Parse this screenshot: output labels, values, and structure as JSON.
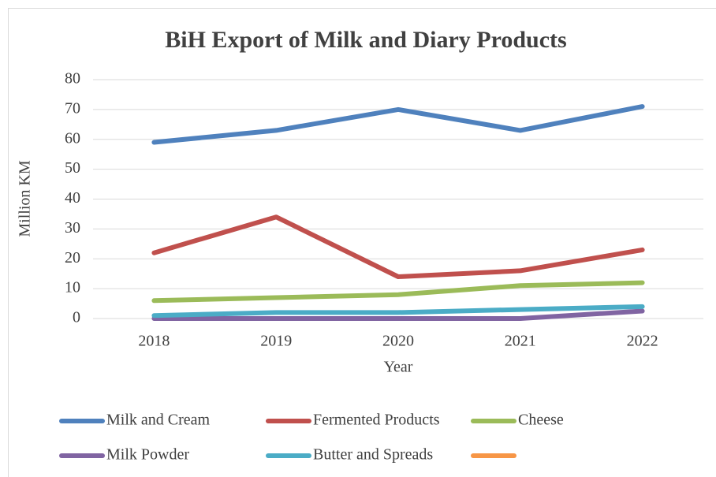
{
  "chart_data": {
    "type": "line",
    "title": "BiH Export of Milk and Diary Products",
    "x_label": "Year",
    "y_label": "Million KM",
    "categories": [
      "2018",
      "2019",
      "2020",
      "2021",
      "2022"
    ],
    "series": [
      {
        "name": "Milk and Cream",
        "color": "#4f81bd",
        "values": [
          59,
          63,
          70,
          63,
          71
        ]
      },
      {
        "name": "Fermented Products",
        "color": "#c0504d",
        "values": [
          22,
          34,
          14,
          16,
          23
        ]
      },
      {
        "name": "Cheese",
        "color": "#9bbb59",
        "values": [
          6,
          7,
          8,
          11,
          12
        ]
      },
      {
        "name": "Milk Powder",
        "color": "#8064a2",
        "values": [
          0,
          0,
          0,
          0,
          2.5
        ]
      },
      {
        "name": "Butter and Spreads",
        "color": "#4bacc6",
        "values": [
          1,
          2,
          2,
          3,
          4
        ]
      },
      {
        "name": null,
        "color": "#f79646",
        "values": [
          null,
          null,
          null,
          null,
          null
        ]
      }
    ],
    "ylim": [
      0,
      80
    ],
    "yticks": [
      0,
      10,
      20,
      30,
      40,
      50,
      60,
      70,
      80
    ],
    "grid": true,
    "legend": "bottom"
  }
}
